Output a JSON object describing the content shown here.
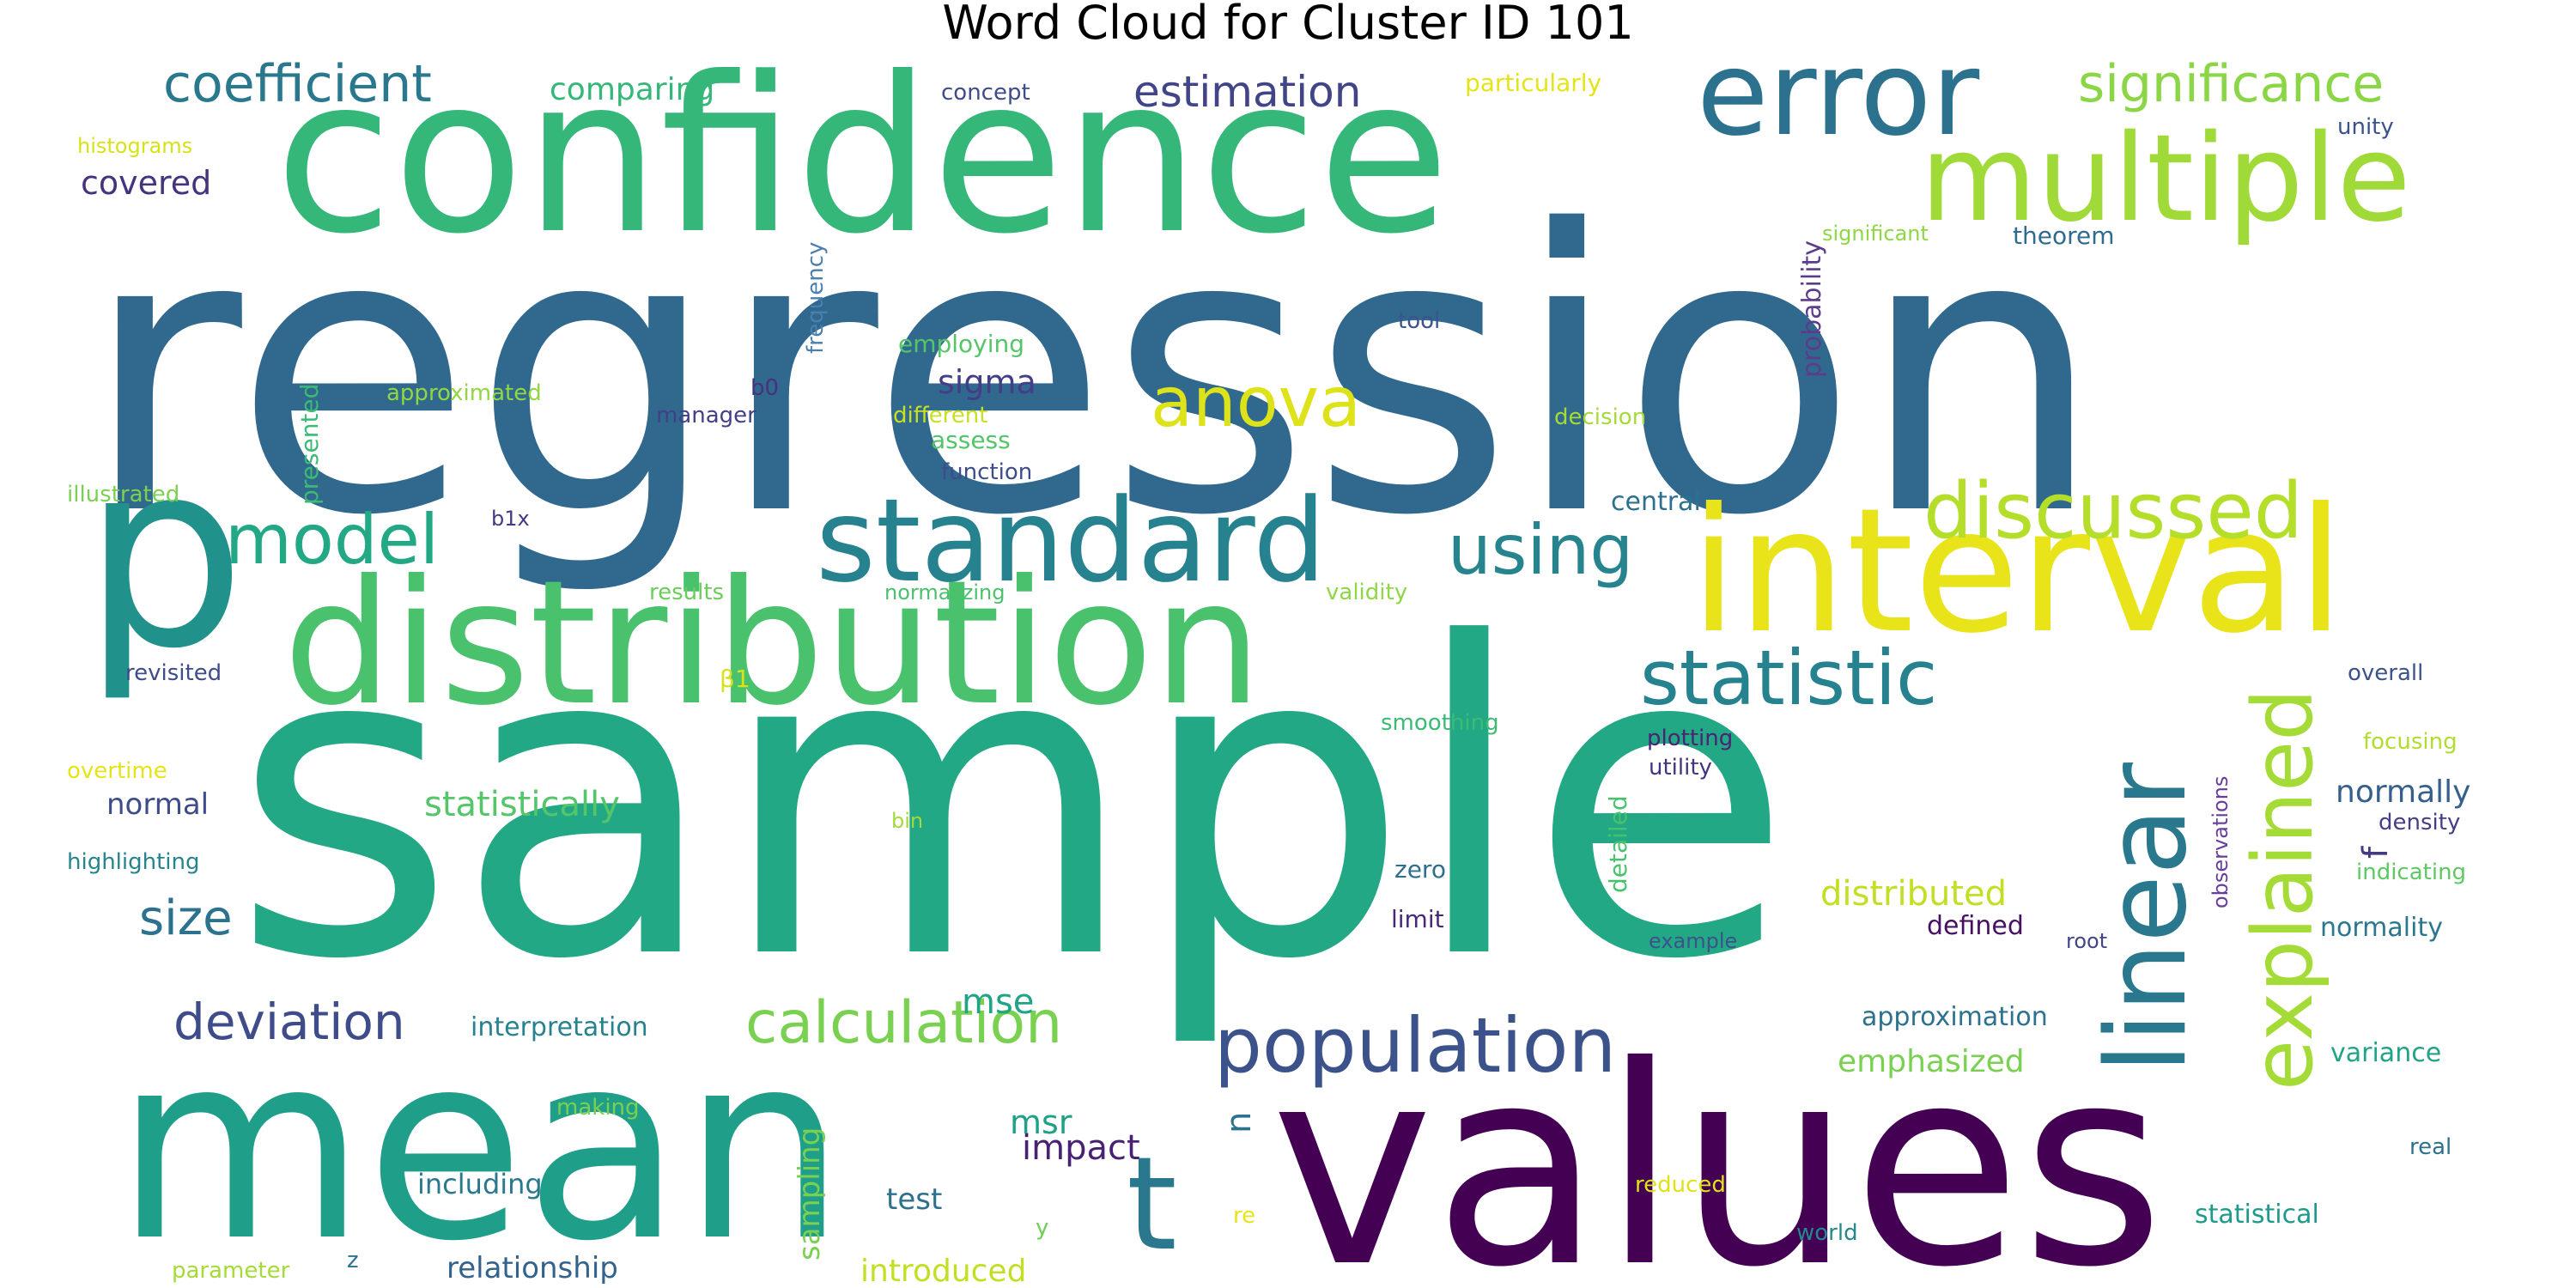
{
  "title": "Word Cloud for Cluster ID 101",
  "words": [
    {
      "text": "regression",
      "color": "#31688e"
    },
    {
      "text": "sample",
      "color": "#22a884"
    },
    {
      "text": "confidence",
      "color": "#35b779"
    },
    {
      "text": "values",
      "color": "#440154"
    },
    {
      "text": "mean",
      "color": "#1f9e89"
    },
    {
      "text": "distribution",
      "color": "#4ac16d"
    },
    {
      "text": "interval",
      "color": "#e8e419"
    },
    {
      "text": "multiple",
      "color": "#a0da39"
    },
    {
      "text": "p",
      "color": "#21918c"
    },
    {
      "text": "error",
      "color": "#2c728e"
    },
    {
      "text": "standard",
      "color": "#26828e"
    },
    {
      "text": "linear",
      "color": "#2a788e"
    },
    {
      "text": "population",
      "color": "#3b528b"
    },
    {
      "text": "t",
      "color": "#2a788e"
    },
    {
      "text": "explained",
      "color": "#a5db36"
    },
    {
      "text": "statistic",
      "color": "#26828e"
    },
    {
      "text": "discussed",
      "color": "#b5de2b"
    },
    {
      "text": "model",
      "color": "#22a884"
    },
    {
      "text": "using",
      "color": "#25848e"
    },
    {
      "text": "anova",
      "color": "#dde318"
    },
    {
      "text": "coefficient",
      "color": "#2a788e"
    },
    {
      "text": "significance",
      "color": "#8bd646"
    },
    {
      "text": "calculation",
      "color": "#7ad151"
    },
    {
      "text": "deviation",
      "color": "#3e4c8a"
    },
    {
      "text": "estimation",
      "color": "#414487"
    },
    {
      "text": "size",
      "color": "#2c728e"
    },
    {
      "text": "mse",
      "color": "#20a386"
    },
    {
      "text": "statistically",
      "color": "#54c568"
    },
    {
      "text": "distributed",
      "color": "#c2df23"
    },
    {
      "text": "normally",
      "color": "#355f8d"
    },
    {
      "text": "emphasized",
      "color": "#7ad151"
    },
    {
      "text": "normal",
      "color": "#3e4c8a"
    },
    {
      "text": "comparing",
      "color": "#35b779"
    },
    {
      "text": "sigma",
      "color": "#433e85"
    },
    {
      "text": "covered",
      "color": "#46337e"
    },
    {
      "text": "including",
      "color": "#2a788e"
    },
    {
      "text": "impact",
      "color": "#482173"
    },
    {
      "text": "msr",
      "color": "#1fa188"
    },
    {
      "text": "sampling",
      "color": "#7ad151"
    },
    {
      "text": "introduced",
      "color": "#c2df23"
    },
    {
      "text": "relationship",
      "color": "#33638d"
    },
    {
      "text": "interpretation",
      "color": "#26828e"
    },
    {
      "text": "statistical",
      "color": "#1f9a8a"
    },
    {
      "text": "normality",
      "color": "#2a788e"
    },
    {
      "text": "approximation",
      "color": "#2c728e"
    },
    {
      "text": "variance",
      "color": "#20a386"
    },
    {
      "text": "particularly",
      "color": "#e5e419"
    },
    {
      "text": "test",
      "color": "#2d708e"
    },
    {
      "text": "defined",
      "color": "#471063"
    },
    {
      "text": "central",
      "color": "#2d708e"
    },
    {
      "text": "limit",
      "color": "#482878"
    },
    {
      "text": "zero",
      "color": "#2e6e8e"
    },
    {
      "text": "probability",
      "color": "#5b3c8c"
    },
    {
      "text": "presented",
      "color": "#3cbb75"
    },
    {
      "text": "f",
      "color": "#443983"
    },
    {
      "text": "n",
      "color": "#2c728e"
    },
    {
      "text": "detailed",
      "color": "#48c16e"
    },
    {
      "text": "assess",
      "color": "#52c569"
    },
    {
      "text": "function",
      "color": "#3e4c8a"
    },
    {
      "text": "frequency",
      "color": "#4a7fb0"
    },
    {
      "text": "employing",
      "color": "#54c568"
    },
    {
      "text": "approximated",
      "color": "#90d743"
    },
    {
      "text": "different",
      "color": "#c8e020"
    },
    {
      "text": "manager",
      "color": "#424086"
    },
    {
      "text": "b0",
      "color": "#46327e"
    },
    {
      "text": "tool",
      "color": "#3a548c"
    },
    {
      "text": "decision",
      "color": "#a5db36"
    },
    {
      "text": "illustrated",
      "color": "#7ad151"
    },
    {
      "text": "b1x",
      "color": "#443983"
    },
    {
      "text": "results",
      "color": "#6ccd5a"
    },
    {
      "text": "normalizing",
      "color": "#4ac16d"
    },
    {
      "text": "validity",
      "color": "#8fd744"
    },
    {
      "text": "revisited",
      "color": "#3e4c8a"
    },
    {
      "text": "β1",
      "color": "#d8e219"
    },
    {
      "text": "smoothing",
      "color": "#3cbb75"
    },
    {
      "text": "plotting",
      "color": "#482475"
    },
    {
      "text": "utility",
      "color": "#46337e"
    },
    {
      "text": "overtime",
      "color": "#e5e419"
    },
    {
      "text": "highlighting",
      "color": "#25858e"
    },
    {
      "text": "bin",
      "color": "#a2da37"
    },
    {
      "text": "overall",
      "color": "#3b528b"
    },
    {
      "text": "focusing",
      "color": "#b0dd2f"
    },
    {
      "text": "density",
      "color": "#433e85"
    },
    {
      "text": "indicating",
      "color": "#5ec962"
    },
    {
      "text": "observations",
      "color": "#6a3d9a"
    },
    {
      "text": "example",
      "color": "#3b528b"
    },
    {
      "text": "root",
      "color": "#404688"
    },
    {
      "text": "making",
      "color": "#7ad151"
    },
    {
      "text": "real",
      "color": "#2c728e"
    },
    {
      "text": "reduced",
      "color": "#dde318"
    },
    {
      "text": "world",
      "color": "#23898e"
    },
    {
      "text": "re",
      "color": "#e8e419"
    },
    {
      "text": "y",
      "color": "#6ece58"
    },
    {
      "text": "z",
      "color": "#2c728e"
    },
    {
      "text": "parameter",
      "color": "#a5db36"
    },
    {
      "text": "histograms",
      "color": "#d8e219"
    },
    {
      "text": "concept",
      "color": "#3e4c8a"
    },
    {
      "text": "unity",
      "color": "#3b528b"
    },
    {
      "text": "significant",
      "color": "#8fd744"
    },
    {
      "text": "theorem",
      "color": "#2f6b8e"
    }
  ]
}
